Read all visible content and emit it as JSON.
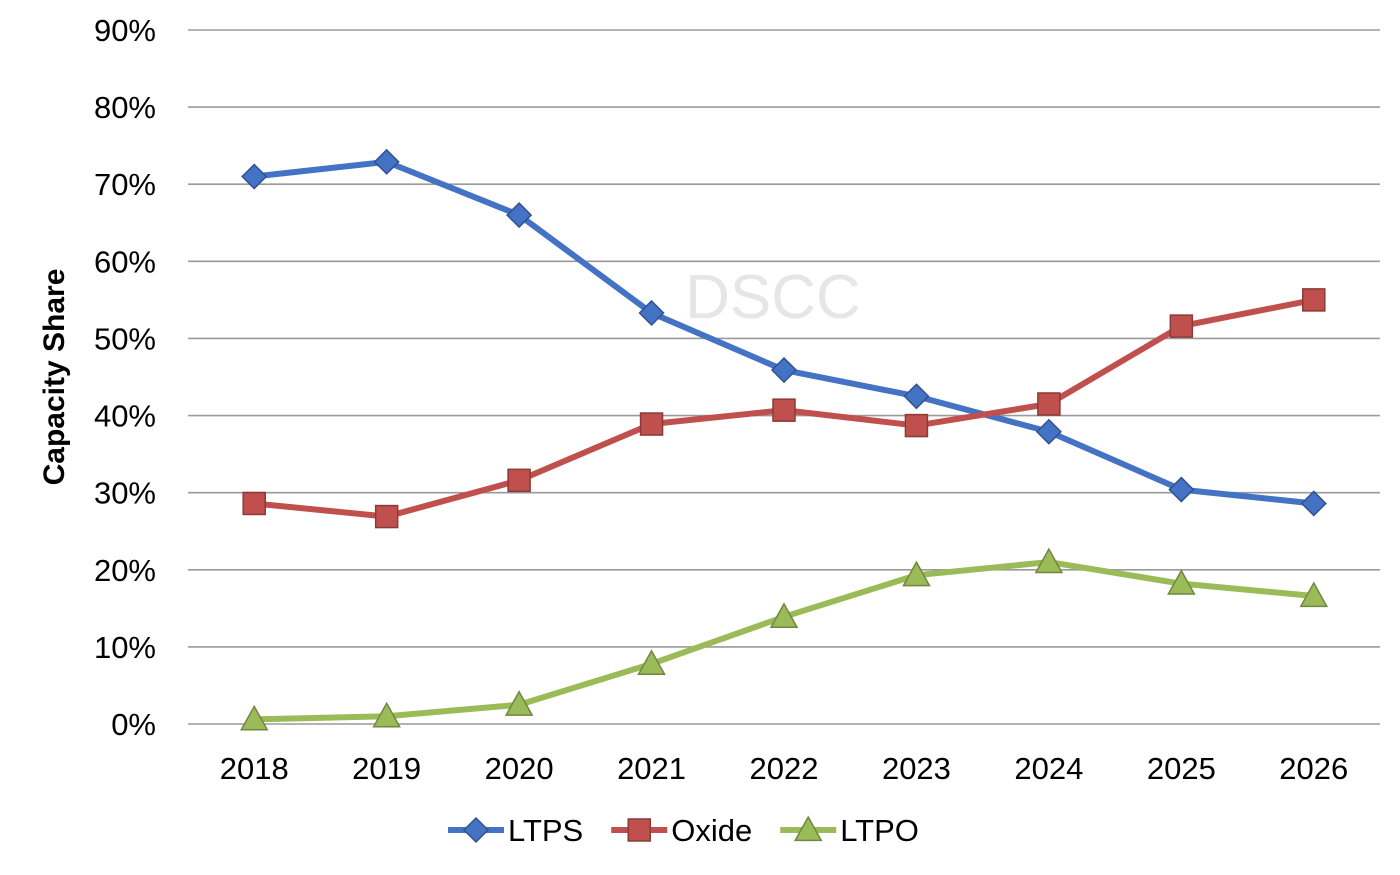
{
  "chart_data": {
    "type": "line",
    "title": "",
    "xlabel": "",
    "ylabel": "Capacity Share",
    "ylim": [
      0,
      90
    ],
    "yticks": [
      "0%",
      "10%",
      "20%",
      "30%",
      "40%",
      "50%",
      "60%",
      "70%",
      "80%",
      "90%"
    ],
    "categories": [
      "2018",
      "2019",
      "2020",
      "2021",
      "2022",
      "2023",
      "2024",
      "2025",
      "2026"
    ],
    "grid": true,
    "legend_position": "bottom",
    "watermark": "DSCC",
    "series": [
      {
        "name": "LTPS",
        "color": "#4472c4",
        "marker": "diamond",
        "values": [
          71.0,
          72.9,
          66.0,
          53.3,
          45.9,
          42.5,
          37.9,
          30.4,
          28.6
        ]
      },
      {
        "name": "Oxide",
        "color": "#c0504d",
        "marker": "square",
        "values": [
          28.6,
          26.9,
          31.6,
          38.9,
          40.7,
          38.7,
          41.5,
          51.6,
          55.0
        ]
      },
      {
        "name": "LTPO",
        "color": "#9bbb59",
        "marker": "triangle",
        "values": [
          0.6,
          1.0,
          2.5,
          7.8,
          13.9,
          19.3,
          21.0,
          18.2,
          16.6
        ]
      }
    ]
  }
}
